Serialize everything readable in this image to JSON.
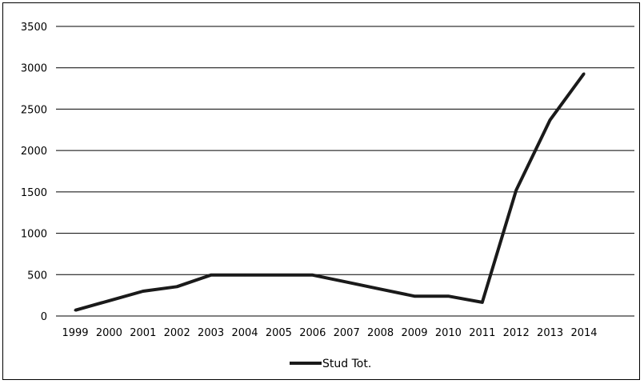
{
  "chart_data": {
    "type": "line",
    "title": "",
    "xlabel": "",
    "ylabel": "",
    "x": [
      "1999",
      "2000",
      "2001",
      "2002",
      "2003",
      "2004",
      "2005",
      "2006",
      "2007",
      "2008",
      "2009",
      "2010",
      "2011",
      "2012",
      "2013",
      "2014"
    ],
    "series": [
      {
        "name": "Stud Tot.",
        "values": [
          70,
          185,
          300,
          355,
          495,
          495,
          495,
          495,
          410,
          325,
          240,
          240,
          165,
          1520,
          2370,
          2930
        ],
        "color": "#1a1a1a"
      }
    ],
    "ylim": [
      0,
      3500
    ],
    "yticks": [
      0,
      500,
      1000,
      1500,
      2000,
      2500,
      3000,
      3500
    ],
    "grid": "horizontal",
    "legend_position": "bottom"
  }
}
